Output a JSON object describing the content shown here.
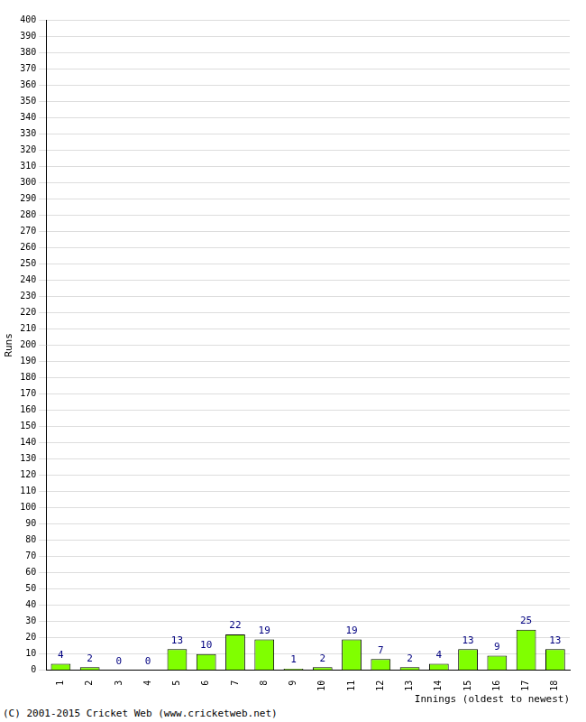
{
  "chart_data": {
    "type": "bar",
    "categories": [
      "1",
      "2",
      "3",
      "4",
      "5",
      "6",
      "7",
      "8",
      "9",
      "10",
      "11",
      "12",
      "13",
      "14",
      "15",
      "16",
      "17",
      "18"
    ],
    "values": [
      4,
      2,
      0,
      0,
      13,
      10,
      22,
      19,
      1,
      2,
      19,
      7,
      2,
      4,
      13,
      9,
      25,
      13
    ],
    "color": "#80ff00",
    "x_label": "Innings (oldest to newest)",
    "y_label": "Runs",
    "annotations": [
      "(C) 2001-2015 Cricket Web (www.cricketweb.net)"
    ],
    "ylim": [
      0,
      400
    ],
    "yticks": [
      0,
      10,
      20,
      30,
      40,
      50,
      60,
      70,
      80,
      90,
      100,
      110,
      120,
      130,
      140,
      150,
      160,
      170,
      180,
      190,
      200,
      210,
      220,
      230,
      240,
      250,
      260,
      270,
      280,
      290,
      300,
      310,
      320,
      330,
      340,
      350,
      360,
      370,
      380,
      390,
      400
    ],
    "grid": true,
    "data_labels": true
  }
}
